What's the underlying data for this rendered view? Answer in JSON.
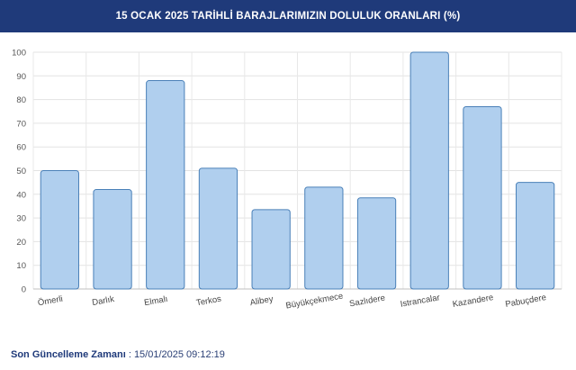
{
  "header": {
    "title": "15 OCAK 2025 TARİHLİ BARAJLARIMIZIN DOLULUK ORANLARI (%)"
  },
  "colors": {
    "header_bg": "#1f3a7a",
    "bar_fill": "#b0cfee",
    "bar_stroke": "#4a80b8",
    "footer_text": "#1f3a7a"
  },
  "chart_data": {
    "type": "bar",
    "title": "15 OCAK 2025 TARİHLİ BARAJLARIMIZIN DOLULUK ORANLARI (%)",
    "categories": [
      "Ömerli",
      "Darlık",
      "Elmalı",
      "Terkos",
      "Alibey",
      "Büyükçekmece",
      "Sazlıdere",
      "Istrancalar",
      "Kazandere",
      "Pabuçdere"
    ],
    "values": [
      50,
      42,
      88,
      51,
      33.5,
      43,
      38.5,
      100,
      77,
      45
    ],
    "ylim": [
      0,
      100
    ],
    "yticks": [
      0,
      10,
      20,
      30,
      40,
      50,
      60,
      70,
      80,
      90,
      100
    ],
    "grid": true,
    "legend": "none"
  },
  "footer": {
    "label": "Son Güncelleme Zamanı",
    "separator": " : ",
    "value": "15/01/2025 09:12:19"
  }
}
